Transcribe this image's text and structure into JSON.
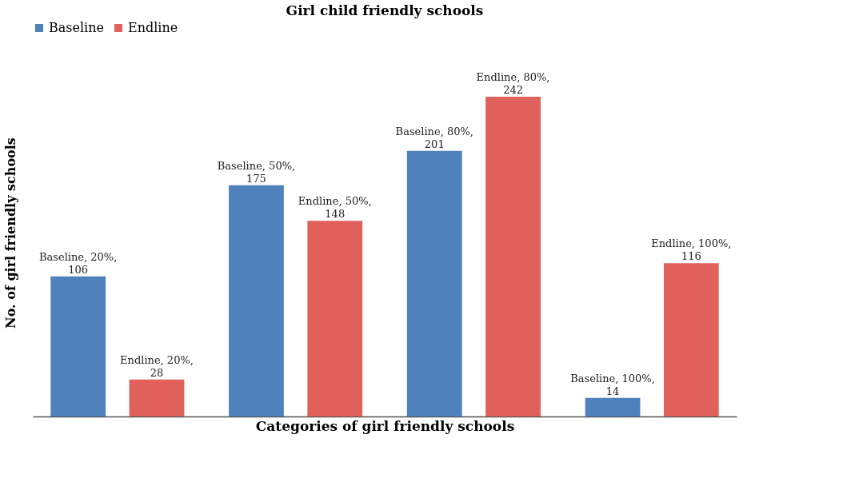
{
  "chart_data": {
    "type": "bar",
    "title": "Girl child friendly schools",
    "xlabel": "Categories of girl friendly schools",
    "ylabel": "No. of girl friendly schools",
    "categories": [
      null,
      null,
      null,
      null
    ],
    "series": [
      {
        "name": "Baseline",
        "color": "#4f81bd",
        "values": [
          106,
          175,
          201,
          14
        ],
        "value_labels": [
          "Baseline, 20%, 106",
          "Baseline, 50%, 175",
          "Baseline, 80%, 201",
          "Baseline, 100%, 14"
        ]
      },
      {
        "name": "Endline",
        "color": "#e0605c",
        "values": [
          28,
          148,
          242,
          116
        ],
        "value_labels": [
          "Endline, 20%, 28",
          "Endline, 50%, 148",
          "Endline, 80%, 242",
          "Endline, 100%, 116"
        ]
      }
    ],
    "legend": "top",
    "tick_labels": false,
    "grid": false
  }
}
